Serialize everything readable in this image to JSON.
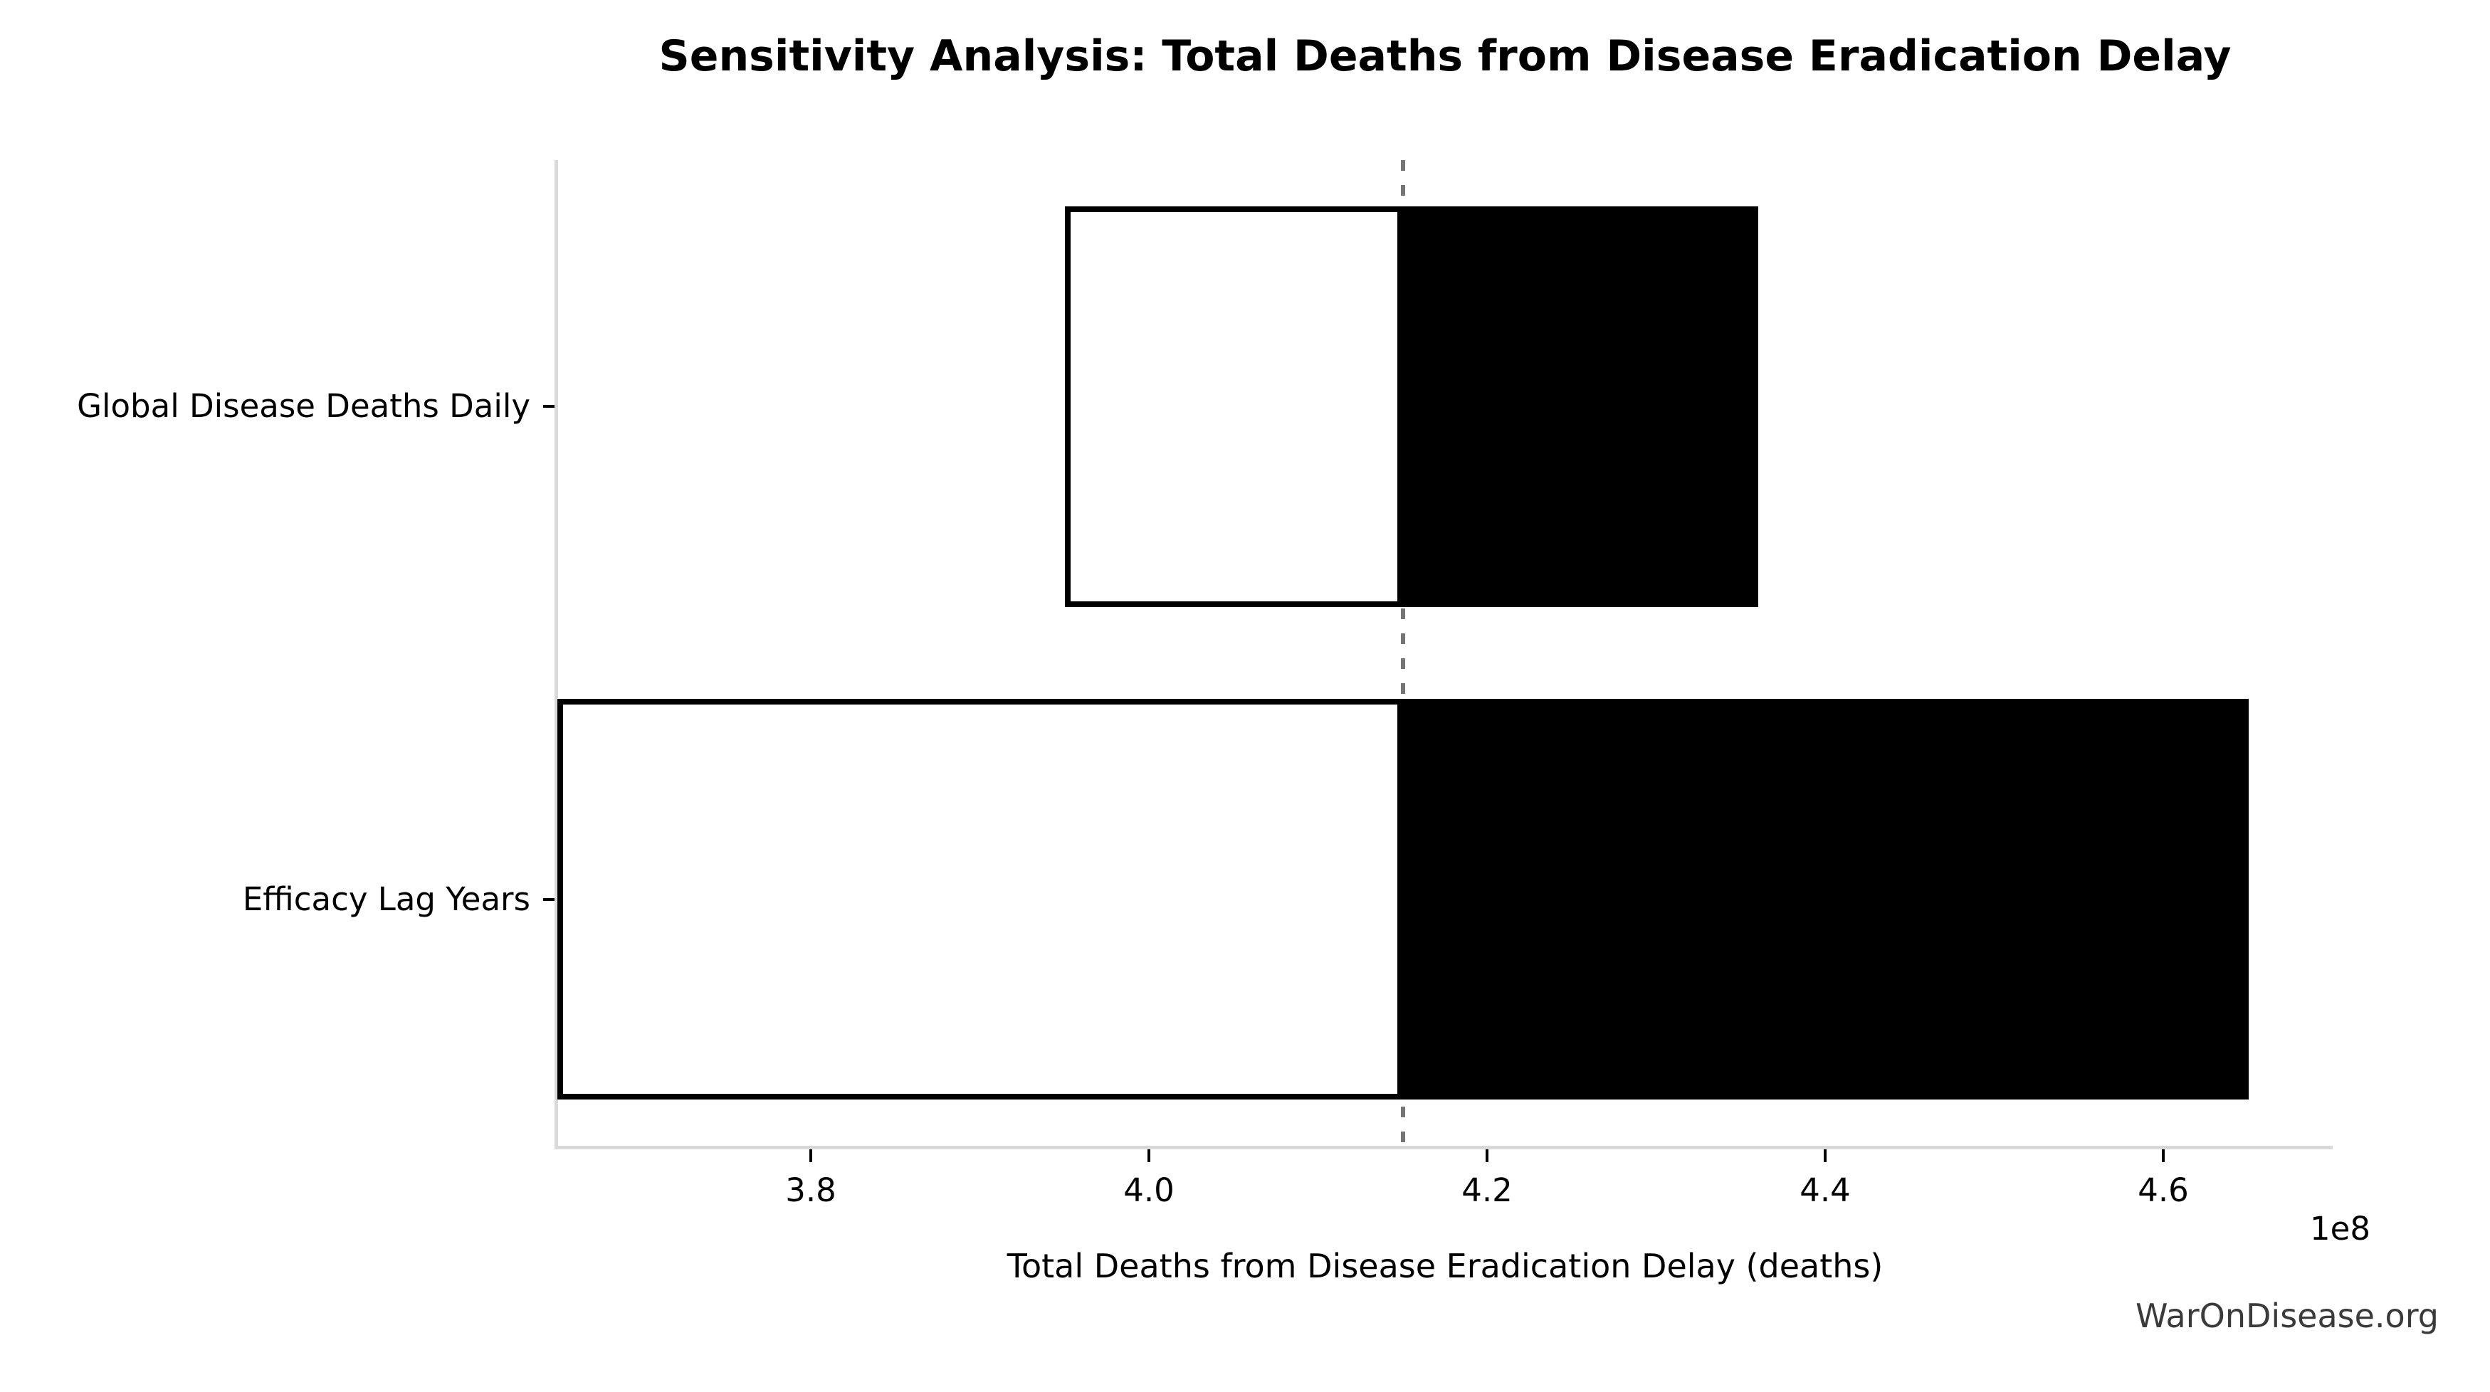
{
  "chart_data": {
    "type": "bar",
    "subtype": "tornado-sensitivity",
    "title": "Sensitivity Analysis: Total Deaths from Disease Eradication Delay",
    "xlabel": "Total Deaths from Disease Eradication Delay (deaths)",
    "offset_label": "1e8",
    "watermark": "WarOnDisease.org",
    "orientation": "horizontal",
    "grid": false,
    "legend": false,
    "unit_multiplier": 100000000,
    "baseline_1e8": 4.15,
    "xlim_1e8": [
      3.65,
      4.7
    ],
    "xtick_labels": [
      "3.8",
      "4.0",
      "4.2",
      "4.4",
      "4.6"
    ],
    "bars": [
      {
        "label": "Global Disease Deaths Daily",
        "low_1e8": 3.95,
        "high_1e8": 4.36
      },
      {
        "label": "Efficacy Lag Years",
        "low_1e8": 3.65,
        "high_1e8": 4.65
      }
    ],
    "colors": {
      "low_fill": "#ffffff",
      "high_fill": "#000000",
      "bar_edge": "#000000",
      "baseline_dash": "#757575",
      "spine": "#d9d9d9",
      "tick": "#000000",
      "text": "#000000",
      "watermark_text": "#3a3a3a"
    }
  }
}
